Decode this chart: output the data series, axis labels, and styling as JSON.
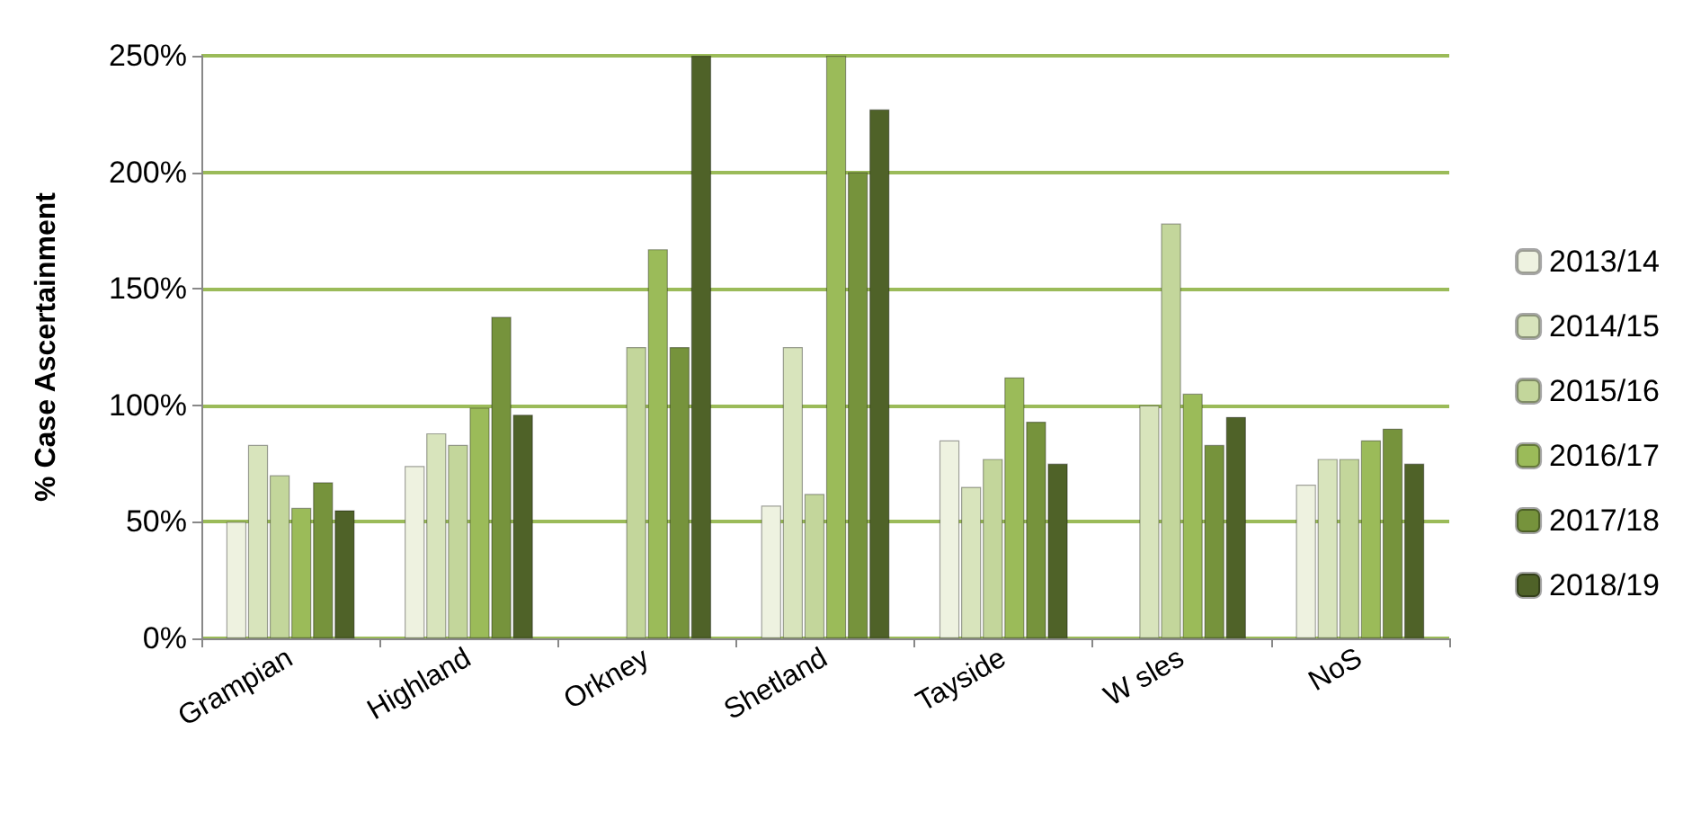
{
  "chart_data": {
    "type": "bar",
    "ylabel": "% Case Ascertainment",
    "categories": [
      "Grampian",
      "Highland",
      "Orkney",
      "Shetland",
      "Tayside",
      "W sles",
      "NoS"
    ],
    "series": [
      {
        "name": "2013/14",
        "color": "#eef2e0",
        "values": [
          50,
          74,
          null,
          57,
          85,
          null,
          66
        ]
      },
      {
        "name": "2014/15",
        "color": "#d8e4bc",
        "values": [
          83,
          88,
          null,
          125,
          65,
          100,
          77
        ]
      },
      {
        "name": "2015/16",
        "color": "#c3d69b",
        "values": [
          70,
          83,
          125,
          62,
          77,
          178,
          77
        ]
      },
      {
        "name": "2016/17",
        "color": "#9bbb59",
        "values": [
          56,
          99,
          167,
          250,
          112,
          105,
          85
        ]
      },
      {
        "name": "2017/18",
        "color": "#76933c",
        "values": [
          67,
          138,
          125,
          200,
          93,
          83,
          90
        ]
      },
      {
        "name": "2018/19",
        "color": "#4f6228",
        "values": [
          55,
          96,
          250,
          227,
          75,
          95,
          75
        ]
      }
    ],
    "ylim": [
      0,
      250
    ],
    "yticks": [
      {
        "value": 0,
        "label": "0%"
      },
      {
        "value": 50,
        "label": "50%"
      },
      {
        "value": 100,
        "label": "100%"
      },
      {
        "value": 150,
        "label": "150%"
      },
      {
        "value": 200,
        "label": "200%"
      },
      {
        "value": 250,
        "label": "250%"
      }
    ],
    "grid": "y",
    "legend": "right"
  }
}
